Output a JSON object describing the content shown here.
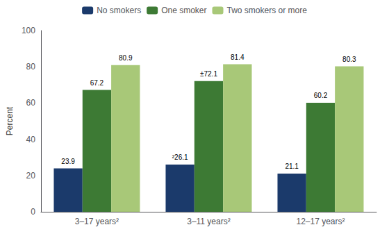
{
  "chart_data": {
    "type": "bar",
    "categories": [
      "3–17 years²",
      "3–11 years²",
      "12–17 years²"
    ],
    "series": [
      {
        "name": "No smokers",
        "color": "#1b3a6b",
        "values": [
          23.9,
          26.1,
          21.1
        ],
        "value_labels": [
          "23.9",
          "²26.1",
          "21.1"
        ]
      },
      {
        "name": "One smoker",
        "color": "#3d7a34",
        "values": [
          67.2,
          72.1,
          60.2
        ],
        "value_labels": [
          "67.2",
          "±72.1",
          "60.2"
        ]
      },
      {
        "name": "Two smokers or more",
        "color": "#a8c878",
        "values": [
          80.9,
          81.4,
          80.3
        ],
        "value_labels": [
          "80.9",
          "81.4",
          "80.3"
        ]
      }
    ],
    "ylabel": "Percent",
    "ylim": [
      0,
      100
    ],
    "yticks": [
      0,
      20,
      40,
      60,
      80,
      100
    ],
    "grid": false,
    "legend": "top",
    "data_labels": true
  }
}
